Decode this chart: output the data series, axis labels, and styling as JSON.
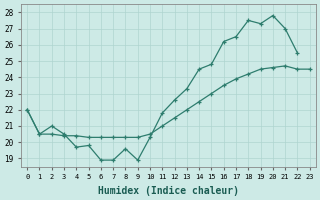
{
  "xlabel": "Humidex (Indice chaleur)",
  "xlim": [
    -0.5,
    23.5
  ],
  "ylim": [
    18.5,
    28.5
  ],
  "yticks": [
    19,
    20,
    21,
    22,
    23,
    24,
    25,
    26,
    27,
    28
  ],
  "xticks": [
    0,
    1,
    2,
    3,
    4,
    5,
    6,
    7,
    8,
    9,
    10,
    11,
    12,
    13,
    14,
    15,
    16,
    17,
    18,
    19,
    20,
    21,
    22,
    23
  ],
  "line_color": "#2e7d6e",
  "bg_color": "#cdeae6",
  "grid_color": "#afd5d0",
  "jagged_x": [
    0,
    1,
    2,
    3,
    4,
    5,
    6,
    7,
    8,
    9,
    10,
    11,
    12,
    13,
    14,
    15,
    16,
    17,
    18,
    19,
    20,
    21,
    22
  ],
  "jagged_y": [
    22.0,
    20.5,
    21.0,
    20.5,
    19.7,
    19.8,
    18.9,
    18.9,
    19.6,
    18.9,
    20.3,
    21.8,
    22.6,
    23.3,
    24.5,
    24.8,
    26.2,
    26.5,
    27.5,
    27.3,
    27.8,
    27.0,
    25.5
  ],
  "smooth_x": [
    0,
    1,
    2,
    3,
    4,
    5,
    6,
    7,
    8,
    9,
    10,
    11,
    12,
    13,
    14,
    15,
    16,
    17,
    18,
    19,
    20,
    21,
    22,
    23
  ],
  "smooth_y": [
    22.0,
    20.5,
    20.5,
    20.4,
    20.4,
    20.3,
    20.3,
    20.3,
    20.3,
    20.3,
    20.5,
    21.0,
    21.5,
    22.0,
    22.5,
    23.0,
    23.5,
    23.9,
    24.2,
    24.5,
    24.6,
    24.7,
    24.5,
    24.5
  ]
}
